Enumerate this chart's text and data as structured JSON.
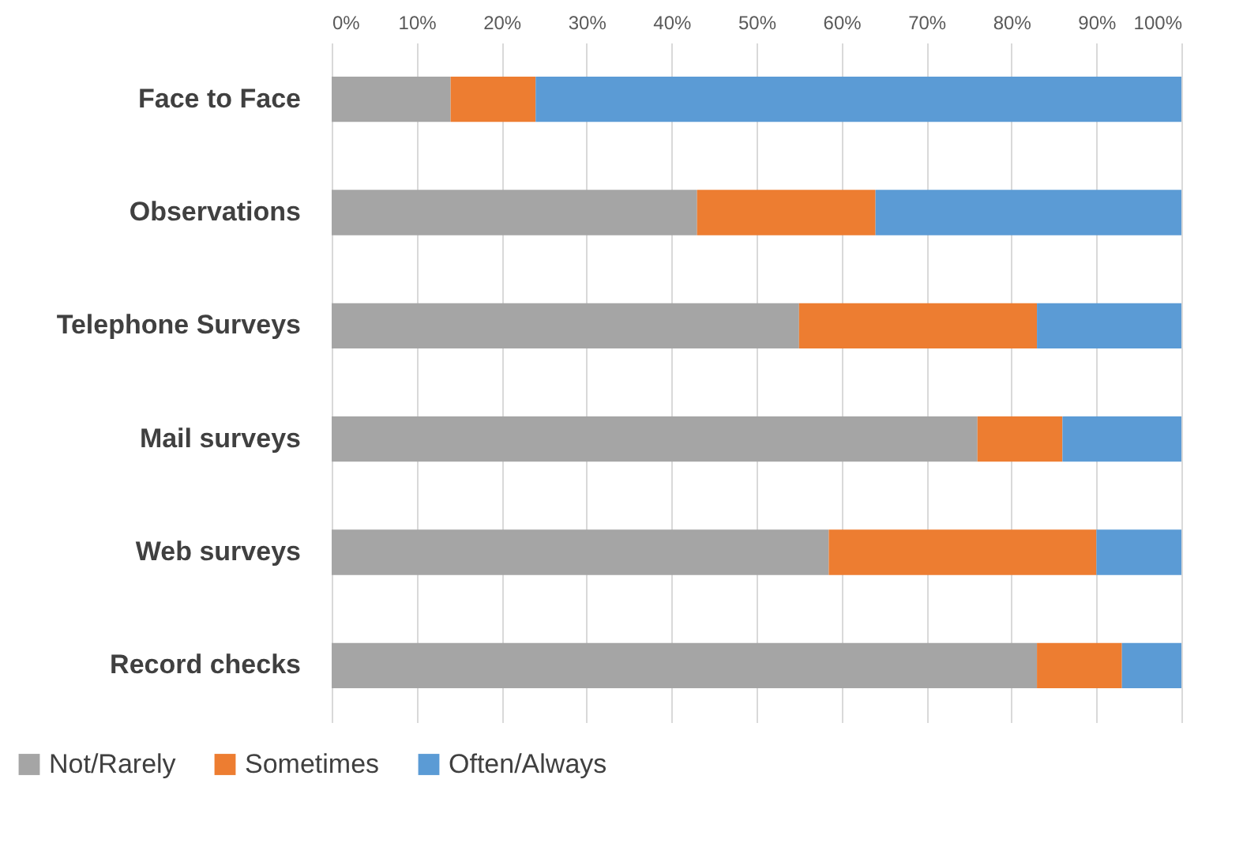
{
  "chart_data": {
    "type": "bar",
    "orientation": "horizontal",
    "stacked": true,
    "categories": [
      "Face to Face",
      "Observations",
      "Telephone Surveys",
      "Mail surveys",
      "Web surveys",
      "Record checks"
    ],
    "series": [
      {
        "name": "Not/Rarely",
        "color": "#a5a5a5",
        "values": [
          14,
          43,
          55,
          76,
          58.5,
          83
        ]
      },
      {
        "name": "Sometimes",
        "color": "#ed7d31",
        "values": [
          10,
          21,
          28,
          10,
          31.5,
          10
        ]
      },
      {
        "name": "Often/Always",
        "color": "#5b9bd5",
        "values": [
          76,
          36,
          17,
          14,
          10,
          7
        ]
      }
    ],
    "xlim": [
      0,
      100
    ],
    "xticks": [
      {
        "value": 0,
        "label": "0%"
      },
      {
        "value": 10,
        "label": "10%"
      },
      {
        "value": 20,
        "label": "20%"
      },
      {
        "value": 30,
        "label": "30%"
      },
      {
        "value": 40,
        "label": "40%"
      },
      {
        "value": 50,
        "label": "50%"
      },
      {
        "value": 60,
        "label": "60%"
      },
      {
        "value": 70,
        "label": "70%"
      },
      {
        "value": 80,
        "label": "80%"
      },
      {
        "value": 90,
        "label": "90%"
      },
      {
        "value": 100,
        "label": "100%"
      }
    ],
    "grid": "x",
    "legend": "bottom left"
  }
}
